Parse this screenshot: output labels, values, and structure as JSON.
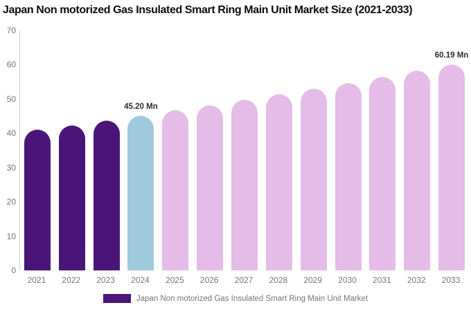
{
  "title": "Japan Non motorized Gas Insulated Smart Ring Main Unit Market Size (2021-2033)",
  "colors": {
    "historical_bar": "#4A1579",
    "current_bar": "#A0C9DD",
    "forecast_bar": "#E4BCE7",
    "axis_line": "#cccccc",
    "axis_text": "#757575",
    "label_text": "#2d2d2d",
    "title_text": "#0d0d0d"
  },
  "chart_data": {
    "type": "bar",
    "title": "Japan Non motorized Gas Insulated Smart Ring Main Unit Market Size (2021-2033)",
    "xlabel": "",
    "ylabel": "",
    "ylim": [
      0,
      70
    ],
    "yticks": [
      0,
      10,
      20,
      30,
      40,
      50,
      60,
      70
    ],
    "grid": false,
    "legend_position": "bottom",
    "categories": [
      "2021",
      "2022",
      "2023",
      "2024",
      "2025",
      "2026",
      "2027",
      "2028",
      "2029",
      "2030",
      "2031",
      "2032",
      "2033"
    ],
    "values": [
      41.0,
      42.3,
      43.7,
      45.2,
      46.66,
      48.17,
      49.73,
      51.33,
      52.99,
      54.7,
      56.47,
      58.3,
      60.19
    ],
    "point_labels": [
      "",
      "",
      "",
      "45.20 Mn",
      "",
      "",
      "",
      "",
      "",
      "",
      "",
      "",
      "60.19 Mn"
    ],
    "bar_colors": [
      "#4A1579",
      "#4A1579",
      "#4A1579",
      "#A0C9DD",
      "#E4BCE7",
      "#E4BCE7",
      "#E4BCE7",
      "#E4BCE7",
      "#E4BCE7",
      "#E4BCE7",
      "#E4BCE7",
      "#E4BCE7",
      "#E4BCE7"
    ],
    "legend": [
      {
        "label": "Japan Non motorized Gas Insulated Smart Ring Main Unit Market",
        "color": "#4A1579"
      }
    ]
  }
}
